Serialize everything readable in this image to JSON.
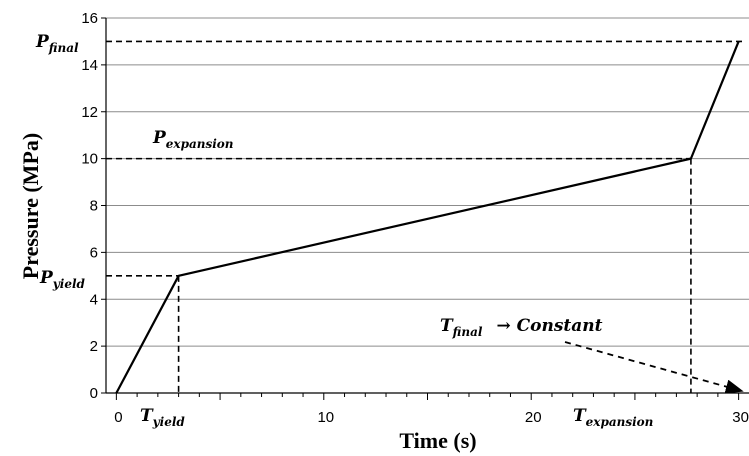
{
  "chart_data": {
    "type": "line",
    "xlabel": "Time (s)",
    "ylabel": "Pressure (MPa)",
    "xlim": [
      -0.5,
      30.5
    ],
    "ylim": [
      0,
      16
    ],
    "x_ticks": [
      "0",
      "10",
      "20",
      "30"
    ],
    "x_tick_values": [
      0,
      10,
      20,
      30
    ],
    "y_ticks": [
      "0",
      "2",
      "4",
      "6",
      "8",
      "10",
      "12",
      "14",
      "16"
    ],
    "y_tick_values": [
      0,
      2,
      4,
      6,
      8,
      10,
      12,
      14,
      16
    ],
    "grid": "horizontal",
    "series": [
      {
        "x": [
          0,
          3,
          27.7,
          30
        ],
        "y": [
          0,
          5,
          10,
          15
        ]
      }
    ],
    "annotations": {
      "p_final": {
        "main": "P",
        "sub": "final",
        "value": 15
      },
      "p_expansion": {
        "main": "P",
        "sub": "expansion",
        "value": 10
      },
      "p_yield": {
        "main": "P",
        "sub": "yield",
        "value": 5
      },
      "t_yield": {
        "main": "T",
        "sub": "yield",
        "value": 3
      },
      "t_expansion": {
        "main": "T",
        "sub": "expansion",
        "value": 27.7
      },
      "t_final": {
        "main": "T",
        "sub": "final",
        "rest": "→ Constant",
        "value": 30
      }
    }
  }
}
